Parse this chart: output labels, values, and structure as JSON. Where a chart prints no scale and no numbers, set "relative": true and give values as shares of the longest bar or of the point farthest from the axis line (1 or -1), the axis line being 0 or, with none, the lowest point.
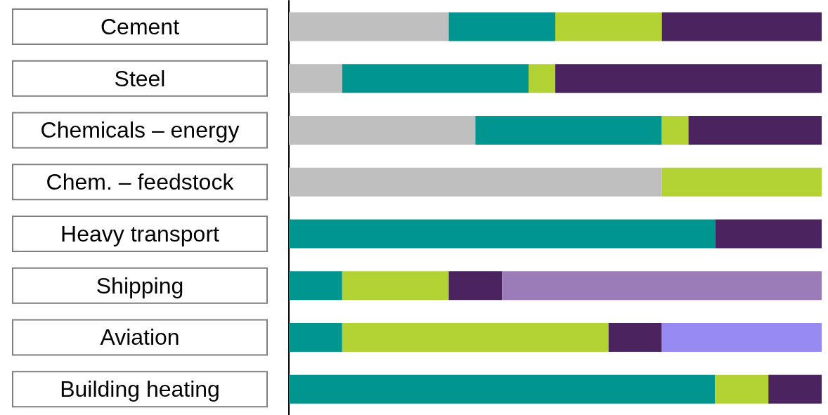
{
  "chart_data": {
    "type": "bar",
    "orientation": "horizontal",
    "stacked": true,
    "relative": true,
    "categories": [
      "Cement",
      "Steel",
      "Chemicals – energy",
      "Chem. – feedstock",
      "Heavy transport",
      "Shipping",
      "Aviation",
      "Building heating"
    ],
    "series": [
      {
        "color": "#bfbfbf",
        "values": [
          0.3,
          0.1,
          0.35,
          0.7,
          null,
          null,
          null,
          null
        ]
      },
      {
        "color": "#00968f",
        "values": [
          0.2,
          0.35,
          0.35,
          null,
          0.8,
          0.1,
          0.1,
          0.8
        ]
      },
      {
        "color": "#b3d335",
        "values": [
          0.2,
          0.05,
          0.05,
          0.3,
          null,
          0.2,
          0.5,
          0.1
        ]
      },
      {
        "color": "#4a235f",
        "values": [
          0.3,
          0.5,
          0.25,
          null,
          0.2,
          0.1,
          0.1,
          0.1
        ]
      },
      {
        "color": "#9b7bb8",
        "values": [
          null,
          null,
          null,
          null,
          null,
          0.6,
          null,
          null
        ]
      },
      {
        "color": "#978bf2",
        "values": [
          null,
          null,
          null,
          null,
          null,
          null,
          0.3,
          null
        ]
      }
    ]
  }
}
